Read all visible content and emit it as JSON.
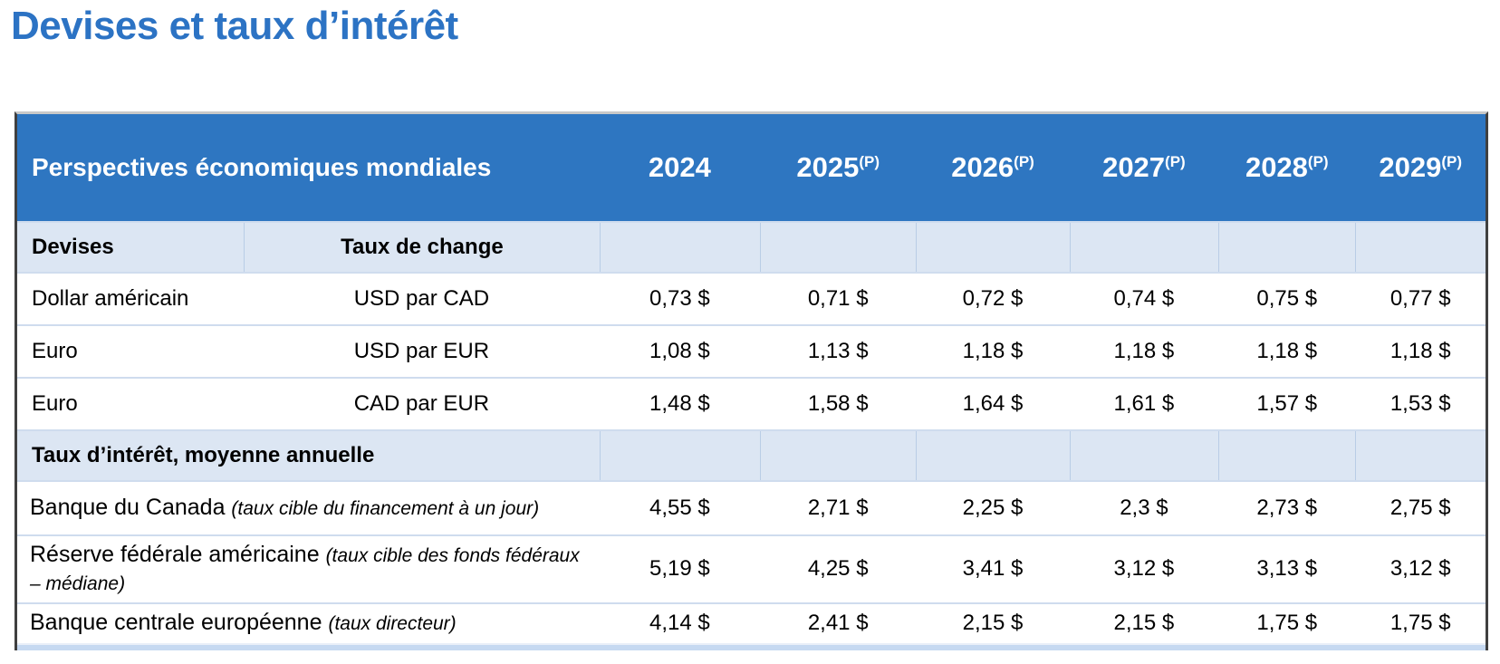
{
  "page_title": "Devises et taux d’intérêt",
  "colors": {
    "title_blue": "#2c73c4",
    "header_bg": "#2e76c1",
    "header_text": "#ffffff",
    "subheader_bg": "#dce6f3",
    "row_divider": "#cfdcee",
    "outer_border": "#404040",
    "bottom_bar": "#c6d9f1"
  },
  "table": {
    "header": {
      "label": "Perspectives économiques mondiales",
      "years": [
        {
          "year": "2024",
          "sup": ""
        },
        {
          "year": "2025",
          "sup": "(P)"
        },
        {
          "year": "2026",
          "sup": "(P)"
        },
        {
          "year": "2027",
          "sup": "(P)"
        },
        {
          "year": "2028",
          "sup": "(P)"
        },
        {
          "year": "2029",
          "sup": "(P)"
        }
      ]
    },
    "currency_section": {
      "col1_header": "Devises",
      "col2_header": "Taux de change",
      "rows": [
        {
          "name": "Dollar américain",
          "pair": "USD par CAD",
          "values": [
            "0,73 $",
            "0,71 $",
            "0,72 $",
            "0,74 $",
            "0,75 $",
            "0,77 $"
          ]
        },
        {
          "name": "Euro",
          "pair": "USD par EUR",
          "values": [
            "1,08 $",
            "1,13 $",
            "1,18 $",
            "1,18 $",
            "1,18 $",
            "1,18 $"
          ]
        },
        {
          "name": "Euro",
          "pair": "CAD par EUR",
          "values": [
            "1,48 $",
            "1,58 $",
            "1,64 $",
            "1,61 $",
            "1,57 $",
            "1,53 $"
          ]
        }
      ]
    },
    "rates_section": {
      "header": "Taux d’intérêt, moyenne annuelle",
      "rows": [
        {
          "name": "Banque du Canada",
          "note": "(taux cible du financement à un jour)",
          "values": [
            "4,55 $",
            "2,71 $",
            "2,25 $",
            "2,3 $",
            "2,73 $",
            "2,75 $"
          ]
        },
        {
          "name": "Réserve fédérale américaine",
          "note": "(taux cible des fonds fédéraux – médiane)",
          "values": [
            "5,19 $",
            "4,25 $",
            "3,41 $",
            "3,12 $",
            "3,13 $",
            "3,12 $"
          ]
        },
        {
          "name": "Banque centrale européenne",
          "note": "(taux directeur)",
          "values": [
            "4,14 $",
            "2,41 $",
            "2,15 $",
            "2,15 $",
            "1,75 $",
            "1,75 $"
          ]
        }
      ]
    }
  }
}
